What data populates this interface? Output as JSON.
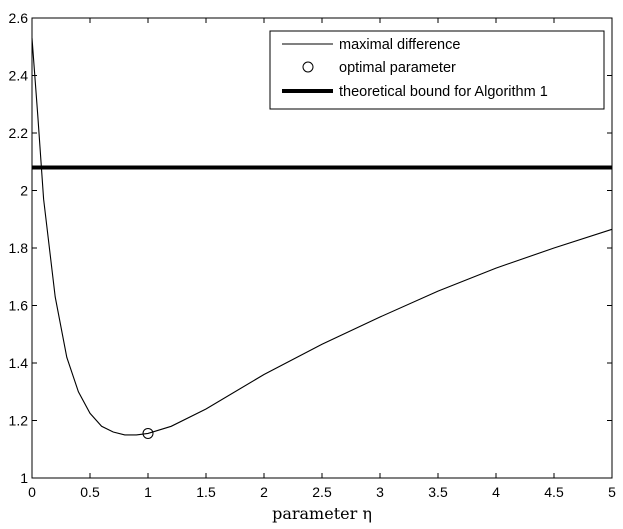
{
  "chart_data": {
    "type": "line",
    "xlabel": "parameter η",
    "ylabel": "",
    "xlim": [
      0,
      5
    ],
    "ylim": [
      1,
      2.6
    ],
    "xticks": [
      0,
      0.5,
      1,
      1.5,
      2,
      2.5,
      3,
      3.5,
      4,
      4.5,
      5
    ],
    "xtick_labels": [
      "0",
      "0.5",
      "1",
      "1.5",
      "2",
      "2.5",
      "3",
      "3.5",
      "4",
      "4.5",
      "5"
    ],
    "yticks": [
      1,
      1.2,
      1.4,
      1.6,
      1.8,
      2,
      2.2,
      2.4,
      2.6
    ],
    "ytick_labels": [
      "1",
      "1.2",
      "1.4",
      "1.6",
      "1.8",
      "2",
      "2.2",
      "2.4",
      "2.6"
    ],
    "grid": false,
    "legend_position": "top-right",
    "series": [
      {
        "name": "maximal difference",
        "kind": "line",
        "x": [
          0,
          0.05,
          0.1,
          0.2,
          0.3,
          0.4,
          0.5,
          0.6,
          0.7,
          0.8,
          0.9,
          1.0,
          1.2,
          1.5,
          2.0,
          2.5,
          3.0,
          3.5,
          4.0,
          4.5,
          5.0
        ],
        "y": [
          2.53,
          2.26,
          1.97,
          1.63,
          1.42,
          1.3,
          1.225,
          1.18,
          1.16,
          1.15,
          1.15,
          1.155,
          1.18,
          1.24,
          1.36,
          1.465,
          1.56,
          1.65,
          1.73,
          1.8,
          1.865
        ]
      },
      {
        "name": "optimal parameter",
        "kind": "marker",
        "x": [
          1.0
        ],
        "y": [
          1.155
        ]
      },
      {
        "name": "theoretical bound for Algorithm 1",
        "kind": "hline",
        "y": 2.08
      }
    ]
  }
}
